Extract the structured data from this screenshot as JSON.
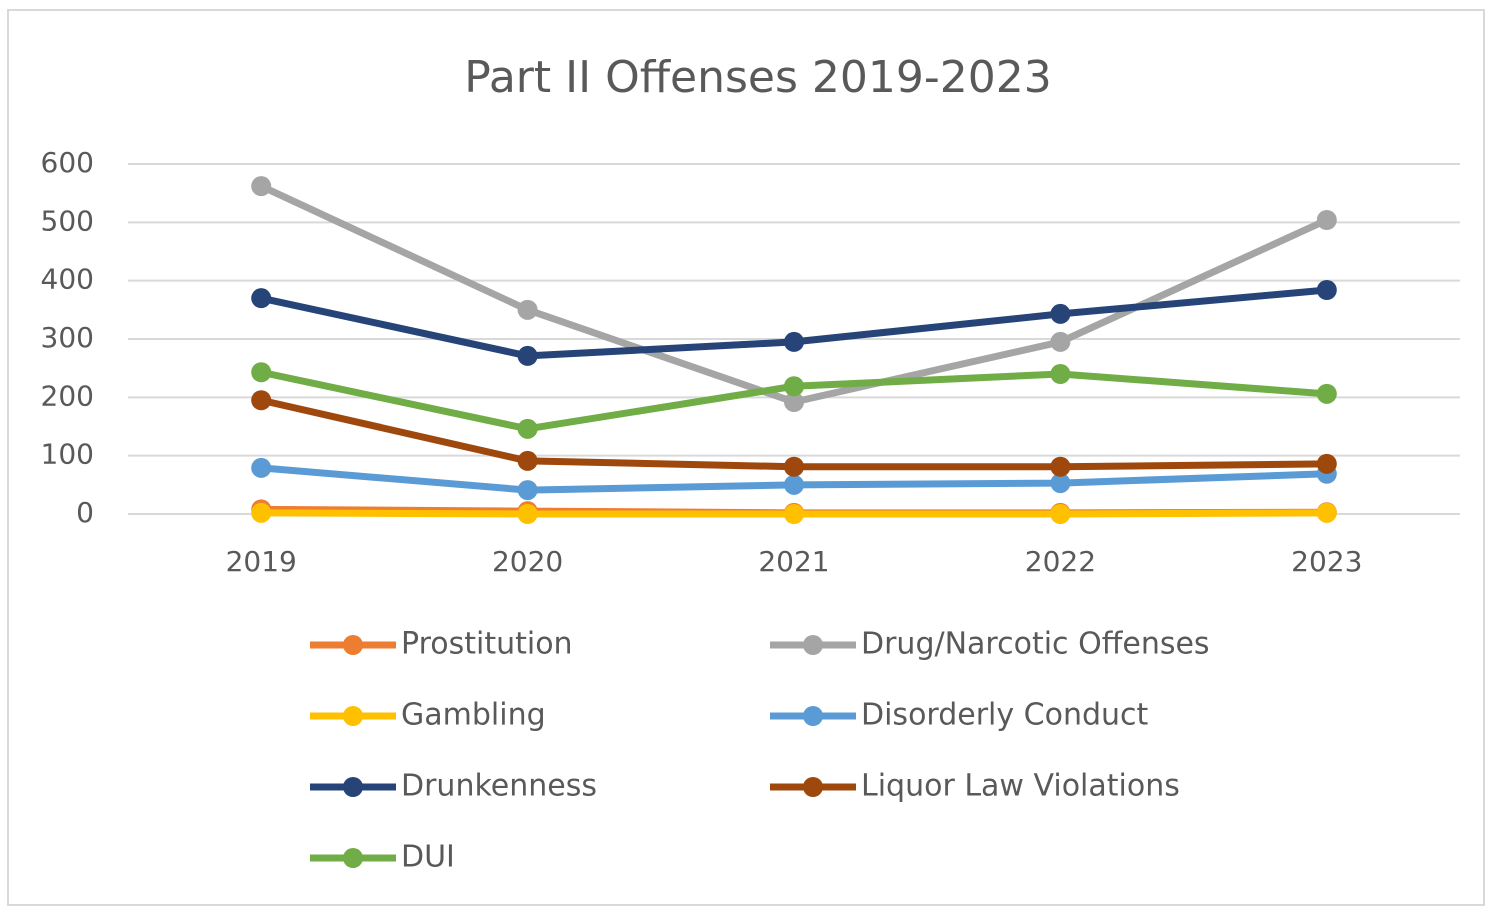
{
  "chart_data": {
    "type": "line",
    "title": "Part II Offenses 2019-2023",
    "categories": [
      "2019",
      "2020",
      "2021",
      "2022",
      "2023"
    ],
    "ylim": [
      0,
      600
    ],
    "yticks": [
      0,
      100,
      200,
      300,
      400,
      500,
      600
    ],
    "grid": true,
    "series": [
      {
        "name": "Prostitution",
        "color": "#ed7d31",
        "values": [
          8,
          5,
          2,
          2,
          3
        ]
      },
      {
        "name": "Drug/Narcotic Offenses",
        "color": "#a5a5a5",
        "values": [
          562,
          350,
          192,
          295,
          504
        ]
      },
      {
        "name": "Gambling",
        "color": "#ffc000",
        "values": [
          2,
          0,
          0,
          0,
          2
        ]
      },
      {
        "name": "Disorderly Conduct",
        "color": "#5b9bd5",
        "values": [
          79,
          41,
          50,
          53,
          69
        ]
      },
      {
        "name": "Drunkenness",
        "color": "#264478",
        "values": [
          370,
          271,
          295,
          343,
          384
        ]
      },
      {
        "name": "Liquor Law Violations",
        "color": "#9e480e",
        "values": [
          195,
          91,
          81,
          81,
          86
        ]
      },
      {
        "name": "DUI",
        "color": "#70ad47",
        "values": [
          243,
          146,
          219,
          240,
          206
        ]
      }
    ]
  }
}
